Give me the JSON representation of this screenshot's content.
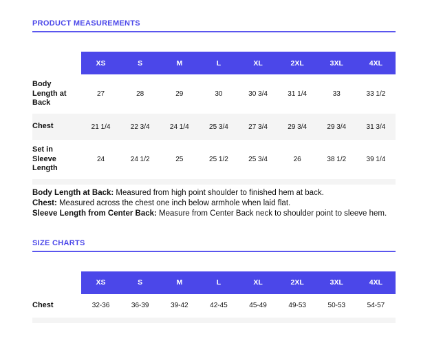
{
  "colors": {
    "accent_blue": "#4B47E9",
    "accent_underline": "#5A56EE",
    "header_bg": "#4B47E9",
    "stripe_gray": "#f4f4f4"
  },
  "product_measurements": {
    "title": "PRODUCT MEASUREMENTS",
    "sizes": [
      "XS",
      "S",
      "M",
      "L",
      "XL",
      "2XL",
      "3XL",
      "4XL"
    ],
    "rows": [
      {
        "label": "Body Length at Back",
        "values": [
          "27",
          "28",
          "29",
          "30",
          "30 3/4",
          "31 1/4",
          "33",
          "33 1/2"
        ]
      },
      {
        "label": "Chest",
        "values": [
          "21 1/4",
          "22 3/4",
          "24 1/4",
          "25 3/4",
          "27 3/4",
          "29 3/4",
          "29 3/4",
          "31 3/4"
        ]
      },
      {
        "label": "Set in Sleeve Length",
        "values": [
          "24",
          "24 1/2",
          "25",
          "25 1/2",
          "25 3/4",
          "26",
          "38 1/2",
          "39 1/4"
        ]
      }
    ],
    "notes": [
      {
        "term": "Body Length at Back:",
        "text": " Measured from high point shoulder to finished hem at back."
      },
      {
        "term": "Chest:",
        "text": " Measured across the chest one inch below armhole when laid flat."
      },
      {
        "term": "Sleeve Length from Center Back:",
        "text": " Measure from Center Back neck to shoulder point to sleeve hem."
      }
    ]
  },
  "size_charts": {
    "title": "SIZE CHARTS",
    "sizes": [
      "XS",
      "S",
      "M",
      "L",
      "XL",
      "2XL",
      "3XL",
      "4XL"
    ],
    "rows": [
      {
        "label": "Chest",
        "values": [
          "32-36",
          "36-39",
          "39-42",
          "42-45",
          "45-49",
          "49-53",
          "50-53",
          "54-57"
        ]
      }
    ]
  }
}
